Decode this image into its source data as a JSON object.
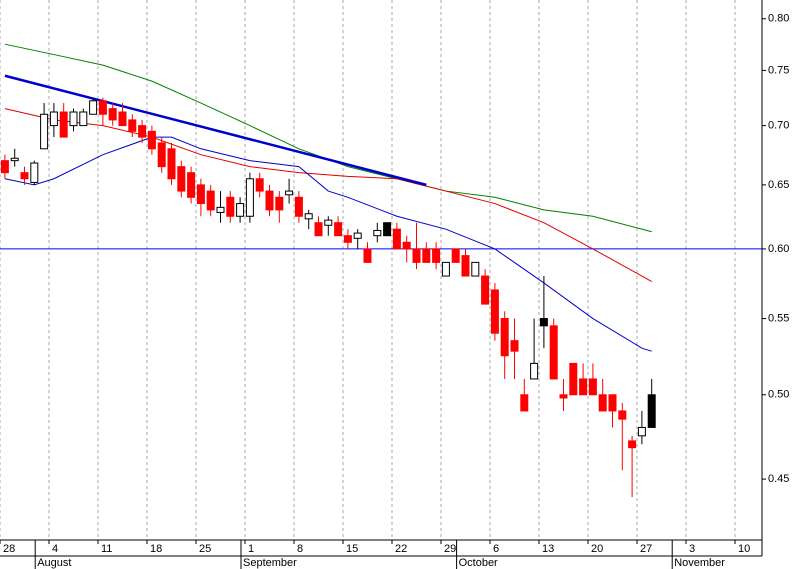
{
  "chart_data": {
    "type": "candlestick",
    "ylog": true,
    "ylim": [
      0.417,
      0.819
    ],
    "yticks": [
      0.45,
      {
        "value": 0.5,
        "label": "0.50"
      },
      0.55,
      {
        "value": 0.6,
        "label": "0.60"
      },
      0.65,
      {
        "value": 0.7,
        "label": "0.70"
      },
      0.75,
      {
        "value": 0.8,
        "label": "0.80"
      }
    ],
    "grid": true,
    "categories": [
      "28",
      null,
      null,
      null,
      null,
      "4",
      null,
      null,
      null,
      null,
      "11",
      null,
      null,
      null,
      null,
      "18",
      null,
      null,
      null,
      null,
      "25",
      null,
      null,
      null,
      null,
      "1",
      null,
      null,
      null,
      null,
      "8",
      null,
      null,
      null,
      null,
      "15",
      null,
      null,
      null,
      null,
      "22",
      null,
      null,
      null,
      null,
      "29",
      null,
      null,
      null,
      null,
      "6",
      null,
      null,
      null,
      null,
      "13",
      null,
      null,
      null,
      null,
      "20",
      null,
      null,
      null,
      null,
      "27",
      null,
      null,
      null,
      null,
      "3",
      null,
      null,
      null,
      null,
      "10"
    ],
    "months": [
      null,
      null,
      null,
      null,
      "August",
      null,
      null,
      null,
      null,
      null,
      null,
      null,
      null,
      null,
      null,
      null,
      null,
      null,
      null,
      null,
      null,
      null,
      null,
      null,
      null,
      "September",
      null,
      null,
      null,
      null,
      null,
      null,
      null,
      null,
      null,
      null,
      null,
      null,
      null,
      null,
      null,
      null,
      null,
      null,
      null,
      null,
      null,
      "October",
      null,
      null,
      null,
      null,
      null,
      null,
      null,
      null,
      null,
      null,
      null,
      null,
      null,
      null,
      null,
      null,
      null,
      null,
      null,
      null,
      null,
      "November",
      null,
      null,
      null,
      null,
      null
    ],
    "open": [
      0.67,
      0.67,
      0.66,
      0.652,
      0.68,
      0.7,
      0.712,
      0.7,
      0.7,
      0.71,
      0.722,
      0.715,
      0.712,
      0.705,
      0.7,
      0.695,
      0.685,
      0.68,
      0.665,
      0.66,
      0.65,
      0.645,
      0.628,
      0.64,
      0.625,
      0.625,
      0.655,
      0.645,
      0.64,
      0.642,
      0.64,
      0.623,
      0.62,
      0.618,
      0.62,
      0.61,
      0.608,
      0.6,
      0.61,
      0.61,
      0.615,
      0.605,
      0.6,
      0.6,
      0.6,
      0.58,
      0.6,
      0.595,
      0.58,
      0.58,
      0.57,
      0.55,
      0.535,
      0.5,
      0.51,
      0.55,
      0.545,
      0.5,
      0.52,
      0.51,
      0.51,
      0.5,
      0.5,
      0.49,
      0.472,
      0.475,
      0.48,
      null,
      null,
      null,
      null,
      null,
      null,
      null,
      null,
      null
    ],
    "high": [
      0.675,
      0.68,
      0.665,
      0.67,
      0.72,
      0.72,
      0.72,
      0.715,
      0.715,
      0.725,
      0.725,
      0.72,
      0.72,
      0.71,
      0.705,
      0.7,
      0.69,
      0.685,
      0.67,
      0.665,
      0.655,
      0.65,
      0.645,
      0.645,
      0.64,
      0.66,
      0.66,
      0.65,
      0.645,
      0.655,
      0.645,
      0.63,
      0.625,
      0.625,
      0.625,
      0.615,
      0.615,
      0.605,
      0.62,
      0.62,
      0.62,
      0.61,
      0.62,
      0.605,
      0.605,
      0.59,
      0.6,
      0.6,
      0.59,
      0.585,
      0.575,
      0.555,
      0.55,
      0.51,
      0.55,
      0.58,
      0.55,
      0.51,
      0.52,
      0.52,
      0.52,
      0.51,
      0.5,
      0.495,
      0.475,
      0.49,
      0.51,
      null,
      null,
      null,
      null,
      null,
      null,
      null,
      null,
      null
    ],
    "low": [
      0.655,
      0.665,
      0.65,
      0.65,
      0.68,
      0.69,
      0.69,
      0.695,
      0.7,
      0.71,
      0.7,
      0.7,
      0.7,
      0.69,
      0.685,
      0.675,
      0.66,
      0.65,
      0.64,
      0.635,
      0.625,
      0.625,
      0.62,
      0.62,
      0.62,
      0.62,
      0.64,
      0.625,
      0.62,
      0.635,
      0.62,
      0.615,
      0.61,
      0.61,
      0.61,
      0.6,
      0.6,
      0.59,
      0.605,
      0.61,
      0.6,
      0.59,
      0.585,
      0.59,
      0.585,
      0.58,
      0.59,
      0.58,
      0.58,
      0.56,
      0.535,
      0.51,
      0.51,
      0.49,
      0.51,
      0.53,
      0.51,
      0.49,
      0.5,
      0.5,
      0.5,
      0.49,
      0.48,
      0.455,
      0.44,
      0.47,
      0.48,
      null,
      null,
      null,
      null,
      null,
      null,
      null,
      null,
      null
    ],
    "close": [
      0.66,
      0.672,
      0.655,
      0.668,
      0.71,
      0.712,
      0.69,
      0.712,
      0.712,
      0.722,
      0.71,
      0.705,
      0.7,
      0.695,
      0.69,
      0.68,
      0.665,
      0.655,
      0.645,
      0.64,
      0.635,
      0.63,
      0.632,
      0.625,
      0.635,
      0.655,
      0.645,
      0.63,
      0.63,
      0.645,
      0.625,
      0.627,
      0.61,
      0.622,
      0.61,
      0.605,
      0.612,
      0.59,
      0.614,
      0.62,
      0.6,
      0.6,
      0.59,
      0.59,
      0.59,
      0.59,
      0.59,
      0.58,
      0.59,
      0.56,
      0.54,
      0.525,
      0.528,
      0.49,
      0.52,
      0.545,
      0.51,
      0.498,
      0.5,
      0.5,
      0.5,
      0.49,
      0.49,
      0.485,
      0.468,
      0.48,
      0.5,
      null,
      null,
      null,
      null,
      null,
      null,
      null,
      null,
      null
    ],
    "colors": [
      "#ff0000",
      "#ffffff",
      "#ff0000",
      "#ffffff",
      "#ffffff",
      "#ffffff",
      "#ff0000",
      "#ffffff",
      "#ffffff",
      "#ffffff",
      "#ff0000",
      "#ff0000",
      "#ff0000",
      "#ff0000",
      "#ff0000",
      "#ff0000",
      "#ff0000",
      "#ff0000",
      "#ff0000",
      "#ff0000",
      "#ff0000",
      "#ff0000",
      "#ffffff",
      "#ff0000",
      "#ffffff",
      "#ffffff",
      "#ff0000",
      "#ff0000",
      "#ff0000",
      "#ffffff",
      "#ff0000",
      "#ffffff",
      "#ff0000",
      "#ffffff",
      "#ff0000",
      "#ff0000",
      "#ffffff",
      "#ff0000",
      "#ffffff",
      "#000000",
      "#ff0000",
      "#ff0000",
      "#ff0000",
      "#ff0000",
      "#ff0000",
      "#ffffff",
      "#ff0000",
      "#ff0000",
      "#ffffff",
      "#ff0000",
      "#ff0000",
      "#ff0000",
      "#ff0000",
      "#ff0000",
      "#ffffff",
      "#000000",
      "#ff0000",
      "#ff0000",
      "#ff0000",
      "#ff0000",
      "#ff0000",
      "#ff0000",
      "#ff0000",
      "#ff0000",
      "#ff0000",
      "#ffffff",
      "#000000",
      null,
      null,
      null,
      null,
      null,
      null,
      null,
      null,
      null
    ],
    "moving_averages": [
      {
        "color": "#008000",
        "x": [
          0,
          5,
          10,
          15,
          20,
          25,
          30,
          35,
          40,
          45,
          50,
          55,
          60,
          65,
          66
        ],
        "values": [
          0.775,
          0.765,
          0.755,
          0.74,
          0.72,
          0.7,
          0.68,
          0.665,
          0.655,
          0.645,
          0.64,
          0.63,
          0.625,
          0.615,
          0.613
        ]
      },
      {
        "color": "#e00000",
        "x": [
          0,
          5,
          10,
          15,
          20,
          25,
          30,
          35,
          40,
          45,
          50,
          55,
          60,
          65,
          66
        ],
        "values": [
          0.715,
          0.705,
          0.7,
          0.69,
          0.675,
          0.665,
          0.66,
          0.657,
          0.655,
          0.645,
          0.635,
          0.62,
          0.6,
          0.58,
          0.576
        ]
      },
      {
        "color": "#0000cc",
        "x": [
          0,
          3,
          5,
          10,
          15,
          17,
          20,
          25,
          30,
          33,
          35,
          40,
          45,
          50,
          55,
          60,
          65,
          66
        ],
        "values": [
          0.655,
          0.65,
          0.655,
          0.675,
          0.69,
          0.69,
          0.68,
          0.67,
          0.665,
          0.645,
          0.64,
          0.625,
          0.615,
          0.6,
          0.575,
          0.55,
          0.53,
          0.528
        ]
      }
    ],
    "trendline": {
      "color": "#0000cc",
      "x": [
        0,
        43
      ],
      "values": [
        0.745,
        0.65
      ]
    },
    "hline": {
      "value": 0.6,
      "color": "#0000ff"
    }
  }
}
